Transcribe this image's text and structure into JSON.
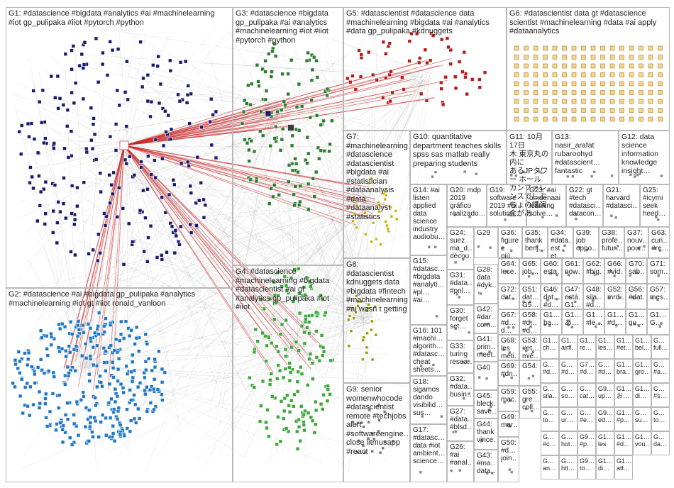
{
  "groups": [
    {
      "id": "G1",
      "label": "G1: #datascience #bigdata #analytics #ai #machinelearning\n#iot gp_pulipaka #iiot #pytorch #python",
      "color": "#1a1a6e"
    },
    {
      "id": "G2",
      "label": "G2: #datascience #ai #bigdata gp_pulipaka #analytics\n#machinelearning #iot gt #iiot ronald_vanloon",
      "color": "#1f77c8"
    },
    {
      "id": "G3",
      "label": "G3: #datascience #bigdata\ngp_pulipaka #ai #analytics\n#machinelearning #iot #iiot\n#pytorch #python",
      "color": "#2e7d32"
    },
    {
      "id": "G4",
      "label": "G4: #datascience\n#machinelearning #bigdata\n#datascientist #ai gt\n#analytics gp_pulipaka #iot\n#iiot",
      "color": "#3da83d"
    },
    {
      "id": "G5",
      "label": "G5: #datascientist #datascience data\n#machinelearning #bigdata #ai #analytics\n#data gp_pulipaka #kdnuggets",
      "color": "#b71c1c"
    },
    {
      "id": "G6",
      "label": "G6: #datascientist data gt #datascience\nscientist #machinelearning #data #ai apply\n#dataanalytics",
      "color": "#e69a2e"
    },
    {
      "id": "G7",
      "label": "G7:\n#machinelearning\n#datascience\n#datascientist\n#bigdata #ai\n#statistician\n#dataanalysis\n#data\n#dataanalyst\n#statistics",
      "color": "#c8b400"
    },
    {
      "id": "G8",
      "label": "G8: #datascientist\nkdnuggets data\n#bigdata #fintech\n#machinelearning\n#ai wasn t getting",
      "color": "#9a9a00"
    },
    {
      "id": "G9",
      "label": "G9: senior\nwomenwhocode\n#datascientist\nremote #techjobs\nalert\n#softwareengine…\nclose litmusapp\n#react",
      "color": "#888888"
    },
    {
      "id": "G10",
      "label": "G10: quantitative\ndepartment teaches skills\nspss sas matlab really\npreparing students",
      "color": "#7b4fa0"
    },
    {
      "id": "G11",
      "label": "G11: 10月17日\n木 東京丸の内に\nあるJPタワー ホール\nカンファレンスでしぶ\nちょの講演会があ…",
      "color": "#666"
    },
    {
      "id": "G12",
      "label": "G12: data\nscience\ninformation\nknowledge\ninsight…",
      "color": "#666"
    },
    {
      "id": "G13",
      "label": "G13:\nnasir_arafat\nrubaroohyd\n#datascient…\nfantastic",
      "color": "#666"
    },
    {
      "id": "G14",
      "label": "G14: #ai\nlisten\napplied\ndata\nscience\nindustry\naudiobu…",
      "color": "#666"
    },
    {
      "id": "G15",
      "label": "G15:\n#datasc…\n#bigdata\n#analyti…\n#pl…\n#ai…",
      "color": "#666"
    },
    {
      "id": "G16",
      "label": "G16: 101\n#machi…\nalgorith…\n#datasc…\ncheat\nsheets…",
      "color": "#666"
    },
    {
      "id": "G17",
      "label": "G17:\n#datasc…\ndata #iot\nambient…\nscience…",
      "color": "#666"
    },
    {
      "id": "G18",
      "label": "G18:\nsigamos\ndando\nvisibilid…\nsus…",
      "color": "#666"
    },
    {
      "id": "G19",
      "label": "G19:\nsoftware\n2019 #ai\nsolution…",
      "color": "#666"
    },
    {
      "id": "G20",
      "label": "G20: mdp\n2019\ngráfico\nrealizado…",
      "color": "#666"
    },
    {
      "id": "G21",
      "label": "G21:\nharvard\n#datasci…",
      "color": "#666"
    },
    {
      "id": "G22",
      "label": "G22: gt\n#tech\n#datasci…\ndatacon…",
      "color": "#666"
    },
    {
      "id": "G23",
      "label": "G23: #ai\nomdenaai\nlearning\nsolve…",
      "color": "#666"
    },
    {
      "id": "G24",
      "label": "G24:\nsuez\nma_d…\ndécou…",
      "color": "#666"
    },
    {
      "id": "G25",
      "label": "G25:\n#icymi\nseek\nheed…",
      "color": "#666"
    },
    {
      "id": "G26",
      "label": "G26:\n#ai\n#anal…",
      "color": "#666"
    },
    {
      "id": "G27",
      "label": "G27:\n#data…\n#blsd…",
      "color": "#666"
    },
    {
      "id": "G28",
      "label": "G28:\ndata\n#dyk…",
      "color": "#666"
    },
    {
      "id": "G29",
      "label": "G29",
      "color": "#666"
    },
    {
      "id": "G30",
      "label": "G30:\nforget\nset…",
      "color": "#666"
    },
    {
      "id": "G31",
      "label": "G31:\n#data…\n#pnl…",
      "color": "#666"
    },
    {
      "id": "G32",
      "label": "G32:\n#data…\nbusin…",
      "color": "#666"
    },
    {
      "id": "G33",
      "label": "G33:\nturing\nresea…",
      "color": "#666"
    },
    {
      "id": "G34",
      "label": "G34:\n#data…\nest et…",
      "color": "#666"
    },
    {
      "id": "G35",
      "label": "G35:\nthank\nbenj…",
      "color": "#666"
    },
    {
      "id": "G36",
      "label": "G36:\nfigure\ne più…",
      "color": "#666"
    },
    {
      "id": "G37",
      "label": "G37:\nnouv…\npour…",
      "color": "#666"
    },
    {
      "id": "G38",
      "label": "G38:\nprofe…\nfutur…",
      "color": "#666"
    },
    {
      "id": "G39",
      "label": "G39:\njob\noppo…",
      "color": "#666"
    },
    {
      "id": "G40",
      "label": "G40",
      "color": "#666"
    },
    {
      "id": "G41",
      "label": "G41:\nprim…\nmeet…",
      "color": "#666"
    },
    {
      "id": "G42",
      "label": "G42:\n#dar…\ncom…",
      "color": "#666"
    },
    {
      "id": "G43",
      "label": "G43:\n#ma…\ndata…",
      "color": "#666"
    },
    {
      "id": "G44",
      "label": "G44:\nthank\nvince…",
      "color": "#666"
    },
    {
      "id": "G45",
      "label": "G45:\nbleck…\nsave…",
      "color": "#666"
    },
    {
      "id": "G46",
      "label": "G46:\ndat…\n#d…",
      "color": "#666"
    },
    {
      "id": "G47",
      "label": "G47:\nestá…\nG1…",
      "color": "#666"
    },
    {
      "id": "G48",
      "label": "G48:\nsila…\n#d…",
      "color": "#666"
    },
    {
      "id": "G49",
      "label": "G49:\nmar…",
      "color": "#666"
    },
    {
      "id": "G50",
      "label": "G50:\n#d…\njoin…",
      "color": "#666"
    },
    {
      "id": "G51",
      "label": "G51:\ndat…\nG5…",
      "color": "#666"
    },
    {
      "id": "G52",
      "label": "G52:\nmrd…",
      "color": "#666"
    },
    {
      "id": "G53",
      "label": "G53:\n#et…\nmiē…",
      "color": "#666"
    },
    {
      "id": "G54",
      "label": "G54:",
      "color": "#666"
    },
    {
      "id": "G55",
      "label": "G55:\ngre…\ncoll…",
      "color": "#666"
    },
    {
      "id": "G56",
      "label": "G56:\n#dat…",
      "color": "#666"
    },
    {
      "id": "G57",
      "label": "G57:\nmes…",
      "color": "#666"
    },
    {
      "id": "G58",
      "label": "G58:\n#d…\n#d…",
      "color": "#666"
    },
    {
      "id": "G59",
      "label": "G59:\nmac…",
      "color": "#666"
    },
    {
      "id": "G60",
      "label": "G60:\nesta…",
      "color": "#666"
    },
    {
      "id": "G61",
      "label": "G61:\nnow…",
      "color": "#666"
    },
    {
      "id": "G62",
      "label": "G62:\n#big…",
      "color": "#666"
    },
    {
      "id": "G63",
      "label": "G63:\ncuri…\n#re…",
      "color": "#666"
    },
    {
      "id": "G64",
      "label": "G64:\nlese…",
      "color": "#666"
    },
    {
      "id": "G65",
      "label": "G65:\njob…",
      "color": "#666"
    },
    {
      "id": "G66",
      "label": "G66:\n#vid…",
      "color": "#666"
    },
    {
      "id": "G67",
      "label": "G67:\n#d…\nd…",
      "color": "#666"
    },
    {
      "id": "G68",
      "label": "G68:\nles\nméti…",
      "color": "#666"
    },
    {
      "id": "G69",
      "label": "G69:\n#dn…",
      "color": "#666"
    },
    {
      "id": "G70",
      "label": "G70:\nsab…",
      "color": "#666"
    },
    {
      "id": "G71",
      "label": "G71:\nsom…",
      "color": "#666"
    },
    {
      "id": "G72",
      "label": "G72:\ndat…",
      "color": "#666"
    },
    {
      "id": "G1x",
      "label": "G1…\nba…",
      "color": "#666"
    },
    {
      "id": "G1y",
      "label": "G1…\nあ…",
      "color": "#666"
    },
    {
      "id": "G1z",
      "label": "G1…\n#le…",
      "color": "#666"
    },
    {
      "id": "G1a",
      "label": "G1…\n#d…",
      "color": "#666"
    },
    {
      "id": "G1b",
      "label": "G1…\ngu…",
      "color": "#666"
    },
    {
      "id": "G1c",
      "label": "G1…\nG…",
      "color": "#666"
    }
  ],
  "grid_labels": [
    "G1…\nch…",
    "G1…\nairfl…",
    "G1…\nre…",
    "G1…\nles…",
    "G1…\n#et…",
    "G1…\nbel…",
    "G…\nfull…",
    "G…\n#d…",
    "G…\n#d…",
    "G7…\n#d…",
    "G…\n#d…",
    "G1…\nbra…",
    "G1…\ngro…",
    "G…\n#a…",
    "G…\nsila…",
    "G…\nso…",
    "G…\ncat…",
    "G9…\nup…",
    "G1…\nお…",
    "G1…\ndi…",
    "G…\n#s…",
    "G…\nto…",
    "G…\nur…",
    "G…\n#e…",
    "G9…\ned…",
    "G1…\n#p…",
    "G…\nsu…",
    "G…\nto…",
    "G…\n#c…",
    "G…\nhot…",
    "G9…\n#p…",
    "G1…\nles",
    "G1…\n#d…",
    "G1…\nvou…",
    "G…\nda…",
    "G…\nan…",
    "G…\nhtt…",
    "G9…\nto…",
    "G1…\ndi…",
    "G1…\natt…"
  ]
}
